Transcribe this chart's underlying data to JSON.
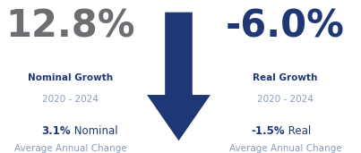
{
  "bg_color": "#ffffff",
  "left_big_number": "12.8%",
  "left_big_color": "#6d6e71",
  "left_label1": "Nominal Growth",
  "left_label2": "2020 - 2024",
  "left_label1_color": "#1f3875",
  "left_label2_color": "#8a9bbf",
  "left_small_bold": "3.1%",
  "left_small_bold_color": "#1f3875",
  "left_small_text": " Nominal",
  "left_small_text_color": "#1f3875",
  "left_small_text2": "Average Annual Change",
  "left_small_text2_color": "#8a9bbf",
  "right_big_number": "-6.0%",
  "right_big_color": "#1f3875",
  "right_label1": "Real Growth",
  "right_label2": "2020 - 2024",
  "right_label1_color": "#1f3875",
  "right_label2_color": "#8a9bbf",
  "right_small_bold": "-1.5%",
  "right_small_bold_color": "#1f3875",
  "right_small_text": " Real",
  "right_small_text_color": "#1f3875",
  "right_small_text2": "Average Annual Change",
  "right_small_text2_color": "#8a9bbf",
  "arrow_color": "#1f3875",
  "figsize": [
    4.03,
    1.71
  ],
  "dpi": 100
}
